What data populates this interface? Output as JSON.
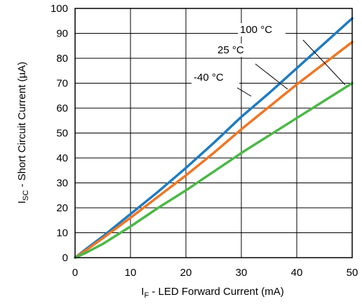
{
  "chart_data": {
    "type": "line",
    "title": "",
    "xlabel": {
      "main": "I",
      "sub": "F",
      "rest": " - LED Forward Current (mA)"
    },
    "ylabel": {
      "main": "I",
      "sub": "SC",
      "rest": " - Short Circuit Current (µA)"
    },
    "xlim": [
      0,
      50
    ],
    "ylim": [
      0,
      100
    ],
    "xticks": [
      "0",
      "10",
      "20",
      "30",
      "40",
      "50"
    ],
    "yticks": [
      "0",
      "10",
      "20",
      "30",
      "40",
      "50",
      "60",
      "70",
      "80",
      "90",
      "100"
    ],
    "grid": true,
    "series": [
      {
        "name": "100 °C",
        "color": "#1f7bc1",
        "x": [
          0,
          2,
          5,
          10,
          15,
          20,
          25,
          30,
          35,
          40,
          45,
          50
        ],
        "y": [
          0,
          3.5,
          8.5,
          17.5,
          26.5,
          36,
          46,
          56.5,
          66,
          76,
          86,
          96
        ]
      },
      {
        "name": "25 °C",
        "color": "#ef7625",
        "x": [
          0,
          2,
          5,
          10,
          15,
          20,
          25,
          30,
          35,
          40,
          45,
          50
        ],
        "y": [
          0,
          3,
          7.8,
          16,
          24.5,
          33,
          42,
          51.5,
          60.5,
          69.5,
          78,
          86.5
        ]
      },
      {
        "name": "-40 °C",
        "color": "#4cb847",
        "x": [
          0,
          2,
          5,
          10,
          15,
          20,
          25,
          30,
          35,
          40,
          45,
          50
        ],
        "y": [
          0,
          2,
          5.5,
          12.5,
          20,
          27,
          34.5,
          42,
          49,
          56,
          63,
          70
        ]
      }
    ]
  }
}
